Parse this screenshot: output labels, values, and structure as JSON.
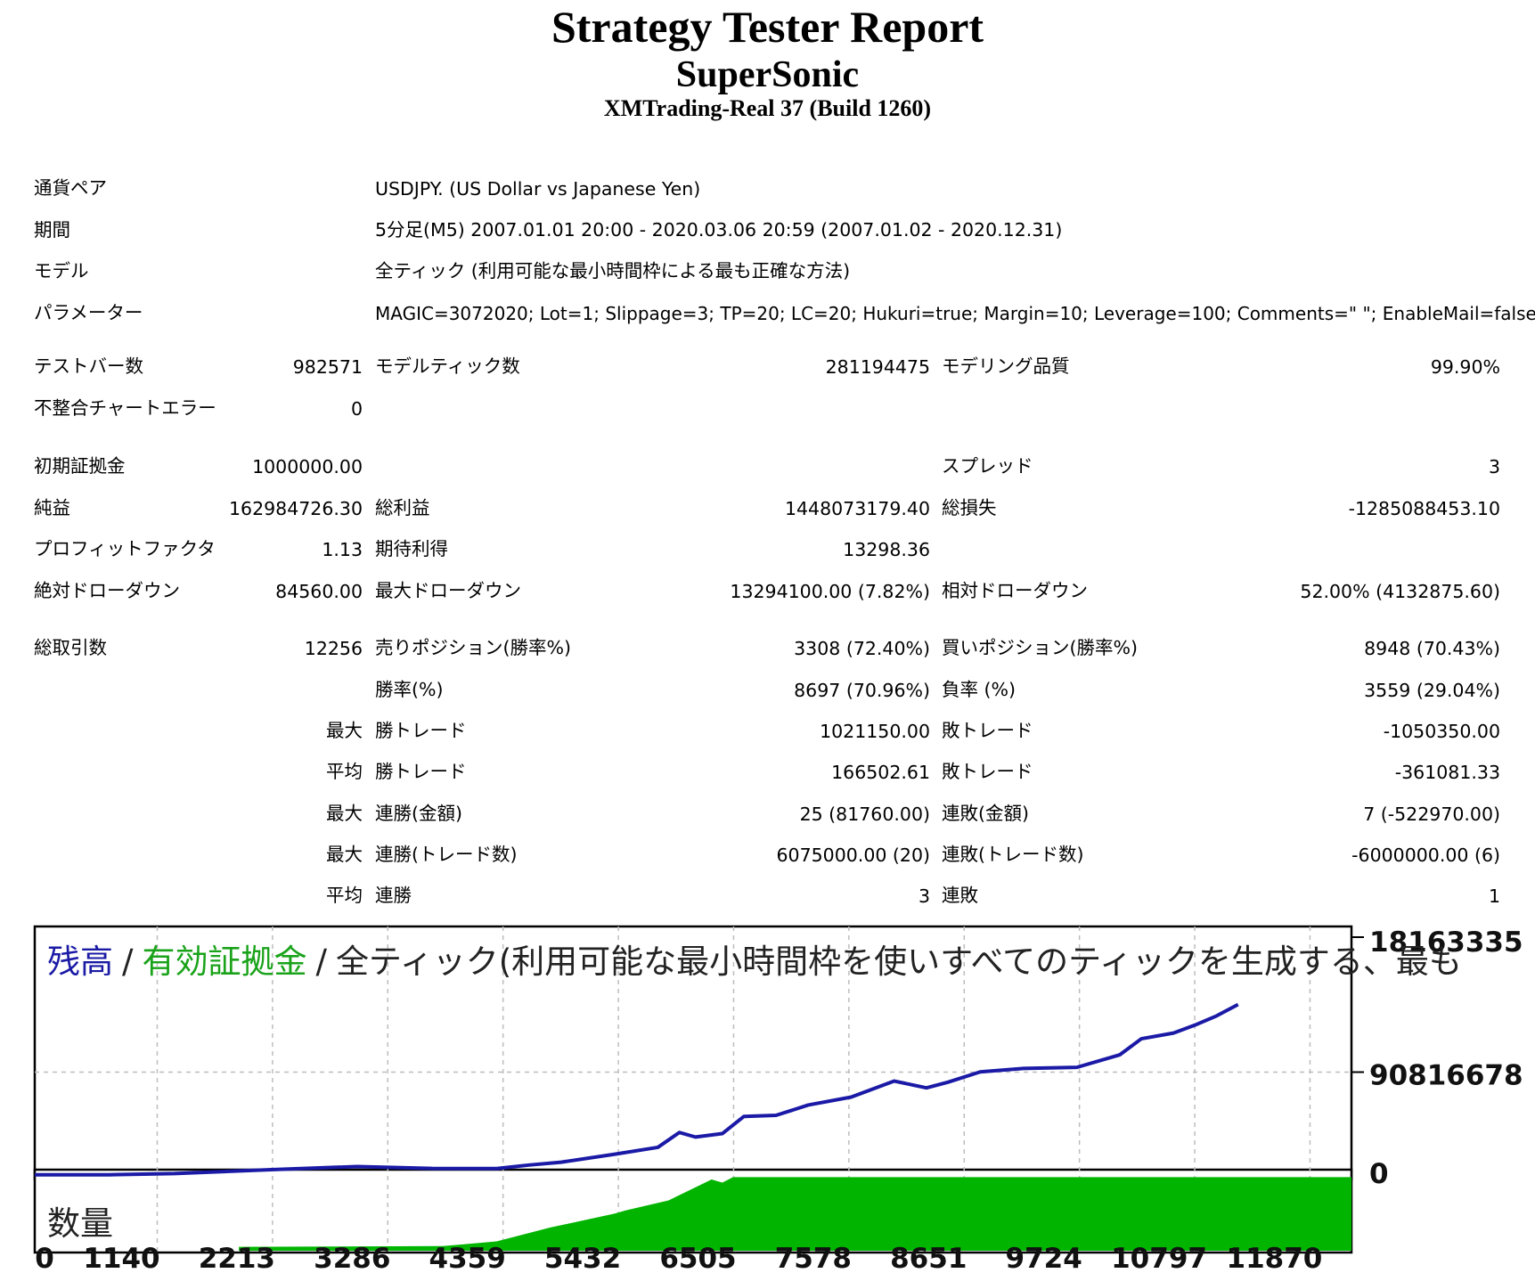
{
  "header": {
    "title": "Strategy Tester Report",
    "ea_name": "SuperSonic",
    "server": "XMTrading-Real 37 (Build 1260)"
  },
  "info": [
    {
      "label": "通貨ペア",
      "value": "USDJPY. (US Dollar vs Japanese Yen)"
    },
    {
      "label": "期間",
      "value": "5分足(M5) 2007.01.01 20:00 - 2020.03.06 20:59 (2007.01.02 - 2020.12.31)"
    },
    {
      "label": "モデル",
      "value": "全ティック (利用可能な最小時間枠による最も正確な方法)"
    },
    {
      "label": "パラメーター",
      "value": "MAGIC=3072020; Lot=1; Slippage=3; TP=20; LC=20; Hukuri=true; Margin=10; Leverage=100; Comments=\" \"; EnableMail=false;"
    }
  ],
  "stats": {
    "bars": {
      "label": "テストバー数",
      "value": "982571"
    },
    "ticks": {
      "label": "モデルティック数",
      "value": "281194475"
    },
    "quality": {
      "label": "モデリング品質",
      "value": "99.90%"
    },
    "mismatch": {
      "label": "不整合チャートエラー",
      "value": "0"
    },
    "deposit": {
      "label": "初期証拠金",
      "value": "1000000.00"
    },
    "spread": {
      "label": "スプレッド",
      "value": "3"
    },
    "net_profit": {
      "label": "純益",
      "value": "162984726.30"
    },
    "gross_profit": {
      "label": "総利益",
      "value": "1448073179.40"
    },
    "gross_loss": {
      "label": "総損失",
      "value": "-1285088453.10"
    },
    "profit_factor": {
      "label": "プロフィットファクタ",
      "value": "1.13"
    },
    "expected_payoff": {
      "label": "期待利得",
      "value": "13298.36"
    },
    "abs_dd": {
      "label": "絶対ドローダウン",
      "value": "84560.00"
    },
    "max_dd": {
      "label": "最大ドローダウン",
      "value": "13294100.00 (7.82%)"
    },
    "rel_dd": {
      "label": "相対ドローダウン",
      "value": "52.00% (4132875.60)"
    },
    "total_trades": {
      "label": "総取引数",
      "value": "12256"
    },
    "short_pos": {
      "label": "売りポジション(勝率%)",
      "value": "3308 (72.40%)"
    },
    "long_pos": {
      "label": "買いポジション(勝率%)",
      "value": "8948 (70.43%)"
    },
    "win_rate": {
      "label": "勝率(%)",
      "value": "8697 (70.96%)"
    },
    "loss_rate": {
      "label": "負率 (%)",
      "value": "3559 (29.04%)"
    },
    "prefix_max": "最大",
    "prefix_avg": "平均",
    "largest_win": {
      "label": "勝トレード",
      "value": "1021150.00"
    },
    "largest_loss": {
      "label": "敗トレード",
      "value": "-1050350.00"
    },
    "avg_win": {
      "label": "勝トレード",
      "value": "166502.61"
    },
    "avg_loss": {
      "label": "敗トレード",
      "value": "-361081.33"
    },
    "max_consec_win_amt": {
      "label": "連勝(金額)",
      "value": "25 (81760.00)"
    },
    "max_consec_loss_amt": {
      "label": "連敗(金額)",
      "value": "7 (-522970.00)"
    },
    "max_consec_win_cnt": {
      "label": "連勝(トレード数)",
      "value": "6075000.00 (20)"
    },
    "max_consec_loss_cnt": {
      "label": "連敗(トレード数)",
      "value": "-6000000.00 (6)"
    },
    "avg_consec_win": {
      "label": "連勝",
      "value": "3"
    },
    "avg_consec_loss": {
      "label": "連敗",
      "value": "1"
    }
  },
  "chart_data": {
    "type": "line",
    "legend": {
      "balance": "残高",
      "sep": "/",
      "equity": "有効証拠金",
      "model": "全ティック(利用可能な最小時間枠を使いすべてのティックを生成する、最も"
    },
    "volume_label": "数量",
    "colors": {
      "balance": "#1a1aa6",
      "equity": "#1aa31a",
      "volume": "#00b400",
      "grid": "#bdbdbd"
    },
    "y_ticks": [
      "18163335",
      "90816678",
      "0"
    ],
    "x_ticks": [
      "0",
      "1140",
      "2213",
      "3286",
      "4359",
      "5432",
      "6505",
      "7578",
      "8651",
      "9724",
      "10797",
      "11870"
    ],
    "ylim": [
      0,
      181633350
    ],
    "xlim": [
      0,
      12256
    ],
    "series": [
      {
        "name": "残高",
        "x": [
          0,
          700,
          1300,
          2200,
          3000,
          3700,
          4300,
          4600,
          4900,
          5400,
          5800,
          6000,
          6150,
          6400,
          6600,
          6900,
          7200,
          7600,
          8000,
          8300,
          8500,
          8800,
          9200,
          9700,
          10100,
          10300,
          10600,
          10800,
          11000,
          11200
        ],
        "y": [
          1000000,
          1000000,
          2000000,
          5500000,
          8200000,
          6500000,
          6400000,
          9500000,
          12000000,
          19000000,
          25000000,
          38000000,
          34000000,
          37000000,
          52000000,
          53000000,
          62000000,
          69000000,
          83000000,
          77000000,
          82000000,
          91000000,
          94000000,
          95000000,
          106000000,
          120000000,
          125000000,
          132000000,
          140000000,
          150000000
        ]
      }
    ],
    "volume": {
      "x": [
        1900,
        3800,
        4300,
        4800,
        5400,
        5500,
        5900,
        6300,
        6400,
        6500,
        12256
      ],
      "fill": [
        0.05,
        0.06,
        0.12,
        0.3,
        0.48,
        0.52,
        0.65,
        0.92,
        0.88,
        0.95,
        0.95
      ]
    }
  }
}
